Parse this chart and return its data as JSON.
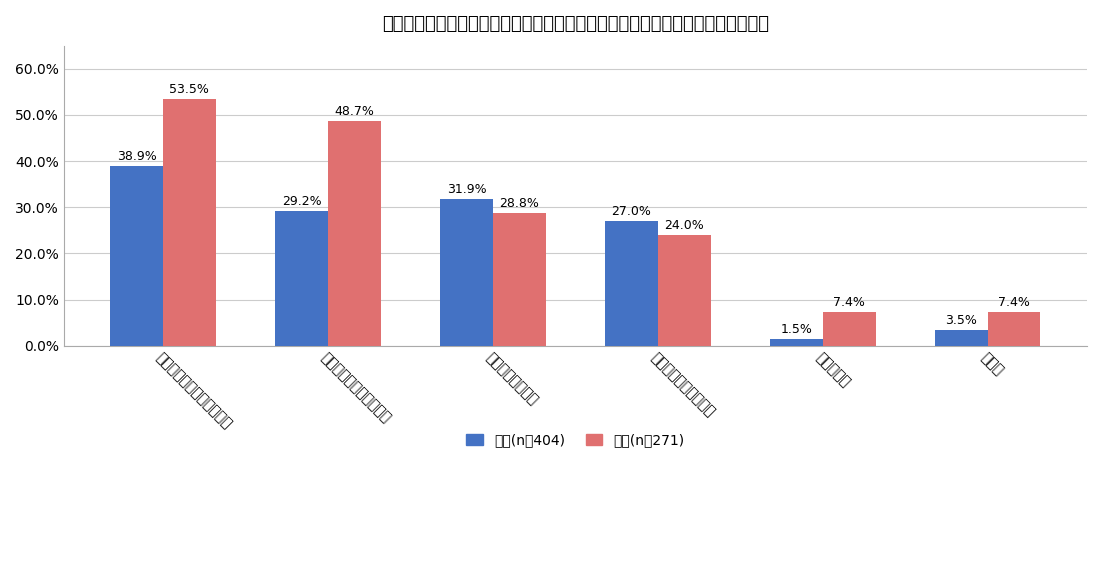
{
  "title": "急に便意がもよおし困るシーンとは、どのような状況ですか？　（複数選択可）",
  "categories": [
    "牛乳や刺激物などの飲食後",
    "公共の交通機関に乗車中",
    "お酒を飲んだ翌日",
    "会議・打合せ・商談中",
    "スポーツ中",
    "その他"
  ],
  "male_values": [
    38.9,
    29.2,
    31.9,
    27.0,
    1.5,
    3.5
  ],
  "female_values": [
    53.5,
    48.7,
    28.8,
    24.0,
    7.4,
    7.4
  ],
  "male_color": "#4472C4",
  "female_color": "#E07070",
  "male_label": "男性(n＝404)",
  "female_label": "女性(n＝271)",
  "ylim": [
    0,
    65
  ],
  "yticks": [
    0,
    10,
    20,
    30,
    40,
    50,
    60
  ],
  "ytick_labels": [
    "0.0%",
    "10.0%",
    "20.0%",
    "30.0%",
    "40.0%",
    "50.0%",
    "60.0%"
  ],
  "background_color": "#ffffff",
  "title_fontsize": 13,
  "label_fontsize": 9,
  "tick_fontsize": 10,
  "legend_fontsize": 10
}
